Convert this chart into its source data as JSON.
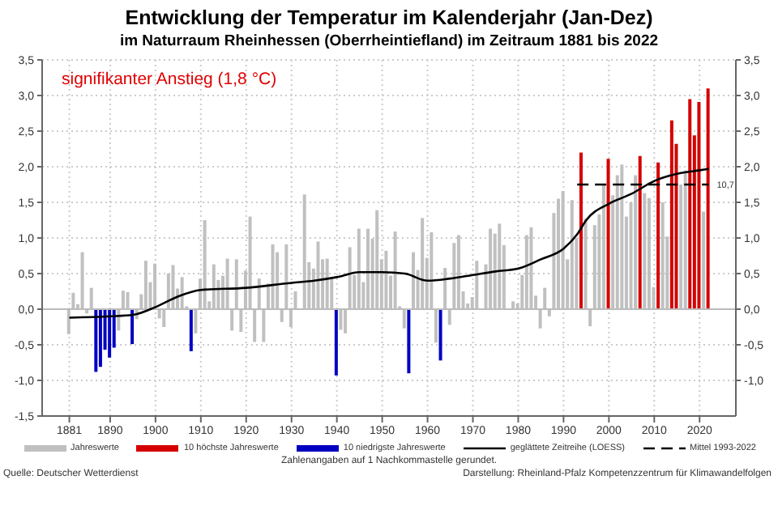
{
  "chart_data": {
    "type": "bar",
    "title": "Entwicklung der Temperatur im Kalenderjahr (Jan-Dez)",
    "subtitle": "im Naturraum Rheinhessen (Oberrheintiefland) im Zeitraum 1881 bis 2022",
    "annotations": [
      "signifikanter Anstieg (1,8 °C)",
      "Zahlenangaben auf 1 Nachkommastelle gerundet.",
      "Quelle: Deutscher Wetterdienst",
      "Darstellung: Rheinland-Pfalz Kompetenzzentrum für Klimawandelfolgen",
      {
        "text": "10,7",
        "x": 2022,
        "y": 1.75
      }
    ],
    "x": [
      1881,
      1882,
      1883,
      1884,
      1885,
      1886,
      1887,
      1888,
      1889,
      1890,
      1891,
      1892,
      1893,
      1894,
      1895,
      1896,
      1897,
      1898,
      1899,
      1900,
      1901,
      1902,
      1903,
      1904,
      1905,
      1906,
      1907,
      1908,
      1909,
      1910,
      1911,
      1912,
      1913,
      1914,
      1915,
      1916,
      1917,
      1918,
      1919,
      1920,
      1921,
      1922,
      1923,
      1924,
      1925,
      1926,
      1927,
      1928,
      1929,
      1930,
      1931,
      1932,
      1933,
      1934,
      1935,
      1936,
      1937,
      1938,
      1939,
      1940,
      1941,
      1942,
      1943,
      1944,
      1945,
      1946,
      1947,
      1948,
      1949,
      1950,
      1951,
      1952,
      1953,
      1954,
      1955,
      1956,
      1957,
      1958,
      1959,
      1960,
      1961,
      1962,
      1963,
      1964,
      1965,
      1966,
      1967,
      1968,
      1969,
      1970,
      1971,
      1972,
      1973,
      1974,
      1975,
      1976,
      1977,
      1978,
      1979,
      1980,
      1981,
      1982,
      1983,
      1984,
      1985,
      1986,
      1987,
      1988,
      1989,
      1990,
      1991,
      1992,
      1993,
      1994,
      1995,
      1996,
      1997,
      1998,
      1999,
      2000,
      2001,
      2002,
      2003,
      2004,
      2005,
      2006,
      2007,
      2008,
      2009,
      2010,
      2011,
      2012,
      2013,
      2014,
      2015,
      2016,
      2017,
      2018,
      2019,
      2020,
      2021,
      2022
    ],
    "stacked": true,
    "series": [
      {
        "name": "Jahreswerte",
        "color": "#c0c0c0",
        "values": [
          -0.35,
          0.23,
          0.07,
          0.8,
          -0.06,
          0.3,
          null,
          null,
          null,
          null,
          null,
          -0.3,
          0.26,
          0.24,
          null,
          -0.14,
          0.21,
          0.68,
          0.38,
          0.64,
          -0.13,
          -0.25,
          0.5,
          0.62,
          0.29,
          0.45,
          0.04,
          null,
          -0.34,
          0.43,
          1.25,
          0.11,
          0.63,
          0.41,
          0.47,
          0.71,
          -0.3,
          0.7,
          -0.32,
          0.54,
          1.3,
          -0.46,
          0.43,
          -0.46,
          0.36,
          0.91,
          0.8,
          -0.18,
          0.91,
          -0.25,
          0.25,
          null,
          1.61,
          0.66,
          0.57,
          0.95,
          0.7,
          0.71,
          0.43,
          null,
          -0.29,
          -0.34,
          0.87,
          0.48,
          1.13,
          0.38,
          1.13,
          0.99,
          1.39,
          0.7,
          0.82,
          0.47,
          1.09,
          0.04,
          -0.27,
          null,
          0.8,
          0.55,
          1.28,
          0.72,
          1.08,
          -0.47,
          null,
          0.58,
          -0.22,
          0.93,
          1.04,
          0.25,
          0.08,
          0.17,
          0.68,
          null,
          0.63,
          1.13,
          1.06,
          1.2,
          0.9,
          null,
          0.11,
          0.08,
          0.48,
          1.04,
          1.15,
          0.19,
          -0.27,
          0.3,
          -0.1,
          1.35,
          1.55,
          1.66,
          0.7,
          1.53,
          1.0,
          null,
          1.27,
          -0.24,
          1.18,
          1.33,
          1.75,
          null,
          1.6,
          1.88,
          2.03,
          1.3,
          1.5,
          1.88,
          null,
          1.63,
          1.56,
          0.31,
          null,
          1.5,
          1.02,
          null,
          null,
          1.75,
          1.95,
          null,
          null,
          null,
          1.37,
          null
        ]
      },
      {
        "name": "10 höchste Jahreswerte",
        "color": "#d40000",
        "values": [
          null,
          null,
          null,
          null,
          null,
          null,
          null,
          null,
          null,
          null,
          null,
          null,
          null,
          null,
          null,
          null,
          null,
          null,
          null,
          null,
          null,
          null,
          null,
          null,
          null,
          null,
          null,
          null,
          null,
          null,
          null,
          null,
          null,
          null,
          null,
          null,
          null,
          null,
          null,
          null,
          null,
          null,
          null,
          null,
          null,
          null,
          null,
          null,
          null,
          null,
          null,
          null,
          null,
          null,
          null,
          null,
          null,
          null,
          null,
          null,
          null,
          null,
          null,
          null,
          null,
          null,
          null,
          null,
          null,
          null,
          null,
          null,
          null,
          null,
          null,
          null,
          null,
          null,
          null,
          null,
          null,
          null,
          null,
          null,
          null,
          null,
          null,
          null,
          null,
          null,
          null,
          null,
          null,
          null,
          null,
          null,
          null,
          null,
          null,
          null,
          null,
          null,
          null,
          null,
          null,
          null,
          null,
          null,
          null,
          null,
          null,
          null,
          null,
          2.2,
          null,
          null,
          null,
          null,
          null,
          2.11,
          null,
          null,
          null,
          null,
          null,
          null,
          2.15,
          null,
          null,
          null,
          2.06,
          null,
          null,
          2.65,
          2.32,
          null,
          null,
          2.95,
          2.44,
          2.91,
          null,
          3.1
        ]
      },
      {
        "name": "10 niedrigste Jahreswerte",
        "color": "#0000c0",
        "values": [
          null,
          null,
          null,
          null,
          null,
          null,
          -0.88,
          -0.81,
          -0.57,
          -0.68,
          -0.54,
          null,
          null,
          null,
          -0.49,
          null,
          null,
          null,
          null,
          null,
          null,
          null,
          null,
          null,
          null,
          null,
          null,
          -0.59,
          null,
          null,
          null,
          null,
          null,
          null,
          null,
          null,
          null,
          null,
          null,
          null,
          null,
          null,
          null,
          null,
          null,
          null,
          null,
          null,
          null,
          null,
          null,
          null,
          null,
          null,
          null,
          null,
          null,
          null,
          null,
          -0.93,
          null,
          null,
          null,
          null,
          null,
          null,
          null,
          null,
          null,
          null,
          null,
          null,
          null,
          null,
          null,
          -0.9,
          null,
          null,
          null,
          null,
          null,
          null,
          -0.72,
          null,
          null,
          null,
          null,
          null,
          null,
          null,
          null,
          null,
          null,
          null,
          null,
          null,
          null,
          null,
          null,
          null,
          null,
          null,
          null,
          null,
          null,
          null,
          null,
          null,
          null,
          null,
          null,
          null,
          null,
          null,
          null,
          null,
          null,
          null,
          null,
          null,
          null,
          null,
          null,
          null,
          null,
          null,
          null,
          null,
          null,
          null,
          null,
          null,
          null,
          null,
          null,
          null,
          null,
          null,
          null,
          null,
          null,
          null
        ]
      },
      {
        "name": "geglättete Zeitreihe (LOESS)",
        "type": "line",
        "color": "#000000",
        "x": [
          1881,
          1890,
          1895,
          1900,
          1905,
          1910,
          1920,
          1930,
          1935,
          1940,
          1945,
          1950,
          1955,
          1960,
          1965,
          1970,
          1975,
          1980,
          1985,
          1990,
          1993,
          1995,
          2000,
          2005,
          2010,
          2015,
          2020,
          2022
        ],
        "values": [
          -0.12,
          -0.1,
          -0.08,
          0.03,
          0.18,
          0.27,
          0.3,
          0.37,
          0.4,
          0.45,
          0.52,
          0.52,
          0.5,
          0.4,
          0.43,
          0.48,
          0.53,
          0.57,
          0.7,
          0.85,
          1.05,
          1.25,
          1.48,
          1.62,
          1.8,
          1.9,
          1.95,
          1.97
        ]
      },
      {
        "name": "Mittel 1993-2022",
        "type": "line",
        "line_style": "dashed",
        "color": "#000000",
        "x": [
          1993,
          2022
        ],
        "values": [
          1.75,
          1.75
        ]
      }
    ],
    "xlim": [
      1875,
      2028
    ],
    "xticks": [
      1881,
      1890,
      1900,
      1910,
      1920,
      1930,
      1940,
      1950,
      1960,
      1970,
      1980,
      1990,
      2000,
      2010,
      2020
    ],
    "ylim": [
      -1.5,
      3.5
    ],
    "yticks": [
      {
        "value": -1.5,
        "label": "-1,5"
      },
      {
        "value": -1,
        "label": "-1,0"
      },
      {
        "value": -0.5,
        "label": "-0,5"
      },
      {
        "value": 0,
        "label": "0,0"
      },
      {
        "value": 0.5,
        "label": "0,5"
      },
      {
        "value": 1,
        "label": "1,0"
      },
      {
        "value": 1.5,
        "label": "1,5"
      },
      {
        "value": 2,
        "label": "2,0"
      },
      {
        "value": 2.5,
        "label": "2,5"
      },
      {
        "value": 3,
        "label": "3,0"
      },
      {
        "value": 3.5,
        "label": "3,5"
      }
    ],
    "y2lim": [
      -1.5,
      3.5
    ],
    "y2ticks": [
      {
        "value": -1,
        "label": "-1,0"
      },
      {
        "value": -0.5,
        "label": "-0,5"
      },
      {
        "value": 0,
        "label": "0,0"
      },
      {
        "value": 0.5,
        "label": "0,5"
      },
      {
        "value": 1,
        "label": "1,0"
      },
      {
        "value": 1.5,
        "label": "1,5"
      },
      {
        "value": 2,
        "label": "2,0"
      },
      {
        "value": 2.5,
        "label": "2,5"
      },
      {
        "value": 3,
        "label": "3,0"
      },
      {
        "value": 3.5,
        "label": "3,5"
      }
    ],
    "ref_lines": [
      {
        "axis": "y",
        "value": 0,
        "color": "#bbbbbb"
      }
    ],
    "grid": true,
    "legend": "bottom"
  }
}
